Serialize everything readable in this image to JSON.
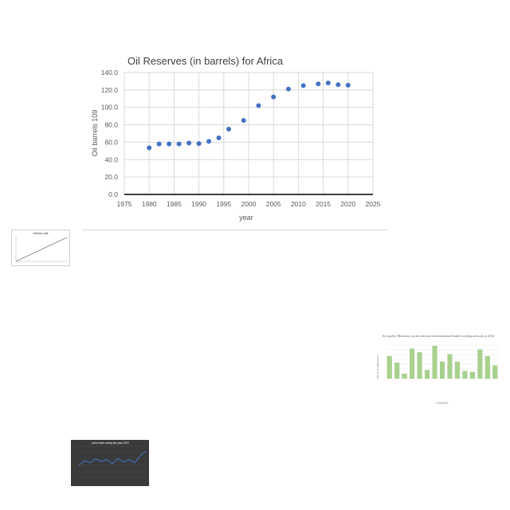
{
  "chart_data": [
    {
      "type": "scatter",
      "title": "Oil Reserves (in barrels) for Africa",
      "xlabel": "year",
      "ylabel": "Oil barrels 109",
      "xlim": [
        1975,
        2025
      ],
      "ylim": [
        0,
        140
      ],
      "x_ticks": [
        "1975",
        "1980",
        "1985",
        "1990",
        "1995",
        "2000",
        "2005",
        "2010",
        "2015",
        "2020",
        "2025"
      ],
      "y_ticks": [
        "0.0",
        "20.0",
        "40.0",
        "60.0",
        "80.0",
        "100.0",
        "120.0",
        "140.0"
      ],
      "grid": true,
      "marker_color": "#4472c4",
      "x": [
        1980,
        1982,
        1984,
        1986,
        1988,
        1990,
        1992,
        1994,
        1996,
        1999,
        2002,
        2005,
        2008,
        2011,
        2014,
        2016,
        2018,
        2020
      ],
      "y": [
        53.5,
        58,
        58,
        58,
        59,
        58.5,
        61,
        65,
        75,
        85,
        102,
        112,
        121,
        125,
        127,
        128,
        126,
        125.5
      ]
    },
    {
      "type": "line",
      "title": "Inflation rate",
      "x": [
        1,
        2,
        3,
        4,
        5,
        6,
        7,
        8,
        9,
        10,
        11
      ],
      "y": [
        0,
        1,
        2,
        3,
        4,
        5,
        6,
        7,
        8,
        9,
        10
      ]
    },
    {
      "type": "bar",
      "title": "Air quality Measures on the national environmental health tracking network in 2014",
      "xlabel": "COUNTRY",
      "ylabel": "VALUE OF INEQUALITY",
      "bar_color": "#a9d18e",
      "values": [
        24,
        17,
        5,
        32,
        28,
        9,
        35,
        18,
        26,
        18,
        8,
        7,
        31,
        24,
        14
      ]
    },
    {
      "type": "line",
      "title": "Labor index during the year 2019",
      "line_color": "#4472c4",
      "background": "#3a3a3a",
      "values": [
        40,
        55,
        48,
        60,
        52,
        58,
        45,
        62,
        50,
        58,
        48,
        70,
        85
      ]
    }
  ]
}
